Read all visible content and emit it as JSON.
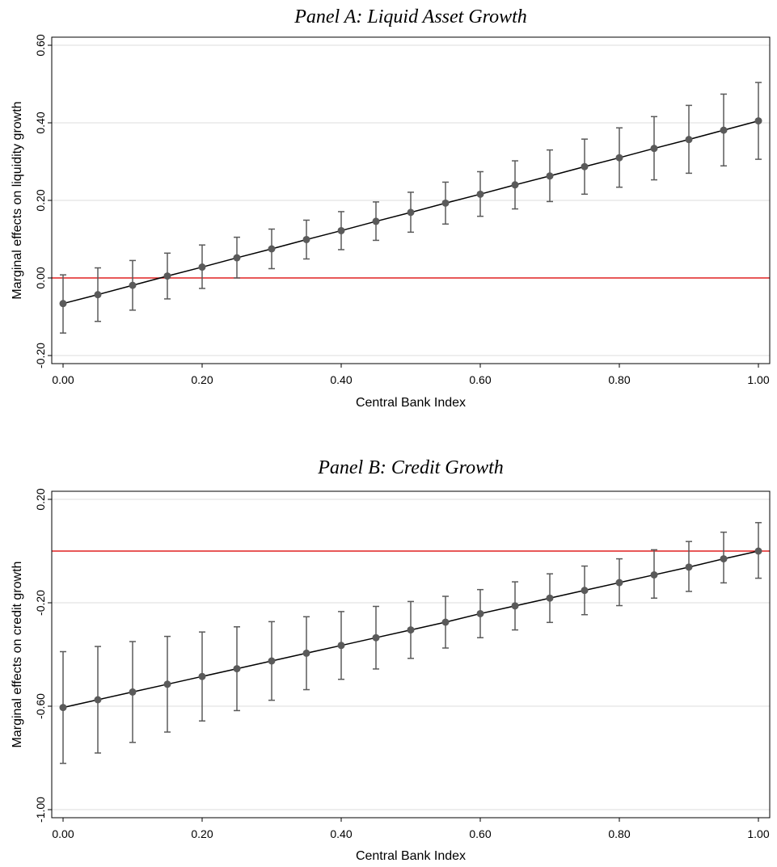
{
  "chart_data": [
    {
      "type": "line",
      "title": "Panel A: Liquid Asset Growth",
      "xlabel": "Central Bank Index",
      "ylabel": "Marginal effects on liquidity growth",
      "xlim": [
        0,
        1
      ],
      "ylim": [
        -0.2,
        0.6
      ],
      "xticks": [
        0,
        0.2,
        0.4,
        0.6,
        0.8,
        1.0
      ],
      "xtick_labels": [
        "0.00",
        "0.20",
        "0.40",
        "0.60",
        "0.80",
        "1.00"
      ],
      "yticks": [
        -0.2,
        0,
        0.2,
        0.4,
        0.6
      ],
      "ytick_labels": [
        "-0.20",
        "0.00",
        "0.20",
        "0.40",
        "0.60"
      ],
      "grid": true,
      "reference_line": 0,
      "x": [
        0,
        0.05,
        0.1,
        0.15,
        0.2,
        0.25,
        0.3,
        0.35,
        0.4,
        0.45,
        0.5,
        0.55,
        0.6,
        0.65,
        0.7,
        0.75,
        0.8,
        0.85,
        0.9,
        0.95,
        1.0
      ],
      "values": [
        -0.066,
        -0.043,
        -0.019,
        0.005,
        0.028,
        0.052,
        0.075,
        0.099,
        0.122,
        0.146,
        0.169,
        0.193,
        0.216,
        0.24,
        0.263,
        0.287,
        0.31,
        0.334,
        0.357,
        0.381,
        0.405
      ],
      "lower": [
        -0.142,
        -0.112,
        -0.083,
        -0.054,
        -0.027,
        0.0,
        0.024,
        0.049,
        0.073,
        0.097,
        0.118,
        0.139,
        0.159,
        0.178,
        0.197,
        0.216,
        0.234,
        0.253,
        0.27,
        0.289,
        0.306
      ],
      "upper": [
        0.008,
        0.026,
        0.045,
        0.064,
        0.085,
        0.105,
        0.126,
        0.149,
        0.171,
        0.196,
        0.221,
        0.247,
        0.274,
        0.302,
        0.33,
        0.358,
        0.387,
        0.416,
        0.445,
        0.474,
        0.504
      ]
    },
    {
      "type": "line",
      "title": "Panel B: Credit Growth",
      "xlabel": "Central Bank Index",
      "ylabel": "Marginal effects on credit growth",
      "xlim": [
        0,
        1
      ],
      "ylim": [
        -1.0,
        0.2
      ],
      "xticks": [
        0,
        0.2,
        0.4,
        0.6,
        0.8,
        1.0
      ],
      "xtick_labels": [
        "0.00",
        "0.20",
        "0.40",
        "0.60",
        "0.80",
        "1.00"
      ],
      "yticks": [
        -1.0,
        -0.6,
        -0.2,
        0.2
      ],
      "ytick_labels": [
        "-1.00",
        "-0.60",
        "-0.20",
        "0.20"
      ],
      "grid": true,
      "reference_line": 0,
      "x": [
        0,
        0.05,
        0.1,
        0.15,
        0.2,
        0.25,
        0.3,
        0.35,
        0.4,
        0.45,
        0.5,
        0.55,
        0.6,
        0.65,
        0.7,
        0.75,
        0.8,
        0.85,
        0.9,
        0.95,
        1.0
      ],
      "values": [
        -0.605,
        -0.575,
        -0.545,
        -0.515,
        -0.485,
        -0.455,
        -0.425,
        -0.395,
        -0.365,
        -0.335,
        -0.305,
        -0.275,
        -0.242,
        -0.212,
        -0.182,
        -0.152,
        -0.122,
        -0.092,
        -0.062,
        -0.03,
        0.0
      ],
      "lower": [
        -0.821,
        -0.781,
        -0.74,
        -0.7,
        -0.657,
        -0.617,
        -0.577,
        -0.536,
        -0.496,
        -0.456,
        -0.415,
        -0.375,
        -0.335,
        -0.305,
        -0.276,
        -0.246,
        -0.211,
        -0.182,
        -0.156,
        -0.123,
        -0.105
      ],
      "upper": [
        -0.389,
        -0.369,
        -0.35,
        -0.33,
        -0.313,
        -0.293,
        -0.273,
        -0.254,
        -0.234,
        -0.214,
        -0.195,
        -0.175,
        -0.149,
        -0.119,
        -0.088,
        -0.058,
        -0.03,
        0.005,
        0.037,
        0.073,
        0.11
      ]
    }
  ],
  "colors": {
    "axis": "#000000",
    "grid": "#dcdcdc",
    "reference_line": "#e02020",
    "line": "#000000",
    "marker": "#5a5a5a",
    "errorbar": "#5a5a5a"
  }
}
